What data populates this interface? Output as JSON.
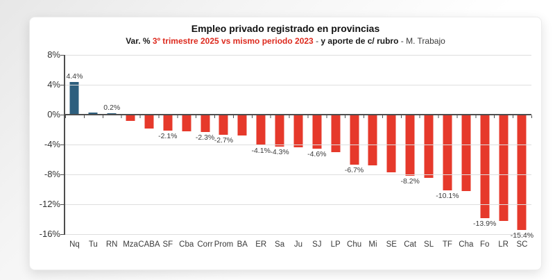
{
  "header": {
    "title": "Empleo privado registrado en provincias",
    "subtitle_parts": [
      {
        "text": "Var. % "
      },
      {
        "text": "3º trimestre 2025 vs mismo periodo 2023"
      },
      {
        "text": " - "
      },
      {
        "text": "y aporte de c/ rubro"
      },
      {
        "text": " - M. Trabajo"
      }
    ]
  },
  "chart_data": {
    "type": "bar",
    "title": "Empleo privado registrado en provincias",
    "subtitle": "Var. % 3º trimestre 2025 vs mismo periodo 2023 - y aporte de c/ rubro - M. Trabajo",
    "categories": [
      "Nq",
      "Tu",
      "RN",
      "Mza",
      "CABA",
      "SF",
      "Cba",
      "Corr",
      "Prom",
      "BA",
      "ER",
      "Sa",
      "Ju",
      "SJ",
      "LP",
      "Chu",
      "Mi",
      "SE",
      "Cat",
      "SL",
      "TF",
      "Cha",
      "Fo",
      "LR",
      "SC"
    ],
    "values": [
      4.4,
      0.3,
      0.2,
      -0.8,
      -1.9,
      -2.1,
      -2.2,
      -2.3,
      -2.7,
      -2.8,
      -4.1,
      -4.3,
      -4.4,
      -4.6,
      -5.0,
      -6.7,
      -6.8,
      -7.7,
      -8.2,
      -8.5,
      -10.1,
      -10.2,
      -13.9,
      -14.2,
      -15.4
    ],
    "data_labels": [
      "4.4%",
      "",
      "0.2%",
      "",
      "",
      "-2.1%",
      "",
      "-2.3%",
      "-2.7%",
      "",
      "-4.1%",
      "-4.3%",
      "",
      "-4.6%",
      "",
      "-6.7%",
      "",
      "",
      "-8.2%",
      "",
      "-10.1%",
      "",
      "-13.9%",
      "",
      "-15.4%"
    ],
    "ylim": [
      -16,
      8
    ],
    "yticks": [
      8,
      4,
      0,
      -4,
      -8,
      -12,
      -16
    ],
    "ytick_labels": [
      "8%",
      "4%",
      "0%",
      "-4%",
      "-8%",
      "-12%",
      "-16%"
    ],
    "grid": true,
    "legend": "none",
    "colors": {
      "positive_bar": "#2D5F7E",
      "negative_bar": "#E6392B",
      "subtitle_accent": "#DD2A1E"
    }
  }
}
